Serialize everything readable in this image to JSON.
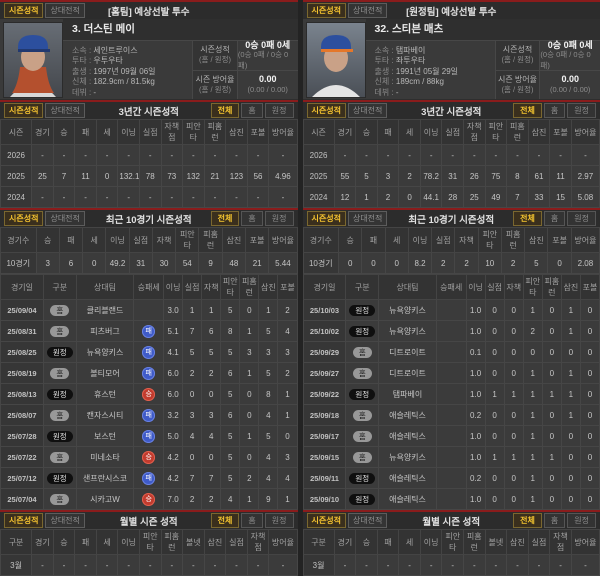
{
  "colors": {
    "accent_gold": "#f4c22f",
    "section_border_red": "#8a1c1c",
    "win_red": "#c23b2e",
    "loss_blue": "#3f5bc9",
    "home_pill_gray": "#989898",
    "away_pill_black": "#0f0f0f"
  },
  "common": {
    "tab_season": "시즌성적",
    "tab_vs": "상대전적",
    "filter_all": "전체",
    "filter_home": "홈",
    "filter_away": "원정",
    "home_away_label": "(홈 / 원정)",
    "season_stat_label": "시즌성적",
    "era_stat_label": "시즌 방어율",
    "three_year_title": "3년간 시즌성적",
    "recent10_title": "최근 10경기 시즌성적",
    "monthly_title": "월별 시즌 성적"
  },
  "left": {
    "title": "[홈팀] 예상선발 투수",
    "player": {
      "name": "3. 더스틴 메이",
      "info": [
        {
          "label": "소속",
          "value": "세인트루이스"
        },
        {
          "label": "투타",
          "value": "우투우타"
        },
        {
          "label": "출생",
          "value": "1997년 09월 06일"
        },
        {
          "label": "신체",
          "value": "182.9cm / 81.5kg"
        },
        {
          "label": "데뷔",
          "value": "-"
        }
      ],
      "season_value": "0승 0패 0세",
      "season_sub": "(0승 0패 / 0승 0패)",
      "era_value": "0.00",
      "era_sub": "(0.00 / 0.00)"
    },
    "three_year": {
      "headers": [
        "시즌",
        "경기",
        "승",
        "패",
        "세",
        "이닝",
        "실점",
        "자책점",
        "피안타",
        "피홈런",
        "삼진",
        "포볼",
        "방어율"
      ],
      "rows": [
        [
          "2026",
          "-",
          "-",
          "-",
          "-",
          "-",
          "-",
          "-",
          "-",
          "-",
          "-",
          "-",
          "-"
        ],
        [
          "2025",
          "25",
          "7",
          "11",
          "0",
          "132.1",
          "78",
          "73",
          "132",
          "21",
          "123",
          "56",
          "4.96"
        ],
        [
          "2024",
          "-",
          "-",
          "-",
          "-",
          "-",
          "-",
          "-",
          "-",
          "-",
          "-",
          "-",
          "-"
        ]
      ]
    },
    "recent10": {
      "headers": [
        "경기수",
        "승",
        "패",
        "세",
        "이닝",
        "실점",
        "자책",
        "피안타",
        "피홈런",
        "삼진",
        "포볼",
        "방어율"
      ],
      "rows": [
        [
          "10경기",
          "3",
          "6",
          "0",
          "49.2",
          "31",
          "30",
          "54",
          "9",
          "48",
          "21",
          "5.44"
        ]
      ]
    },
    "gamelog": {
      "headers": [
        "경기일",
        "구분",
        "상대팀",
        "승패세",
        "이닝",
        "실점",
        "자책",
        "피안타",
        "피홈런",
        "삼진",
        "포볼"
      ],
      "types": {
        "1": "badge",
        "3": "result"
      },
      "rows": [
        [
          "25/09/04",
          "홈",
          "클리블랜드",
          "",
          "3.0",
          "1",
          "1",
          "5",
          "0",
          "1",
          "2"
        ],
        [
          "25/08/31",
          "홈",
          "피츠버그",
          "패",
          "5.1",
          "7",
          "6",
          "8",
          "1",
          "5",
          "4"
        ],
        [
          "25/08/25",
          "원정",
          "뉴욕양키스",
          "패",
          "4.1",
          "5",
          "5",
          "5",
          "3",
          "3",
          "3"
        ],
        [
          "25/08/19",
          "홈",
          "볼티모어",
          "패",
          "6.0",
          "2",
          "2",
          "6",
          "1",
          "5",
          "2"
        ],
        [
          "25/08/13",
          "원정",
          "휴스턴",
          "승",
          "6.0",
          "0",
          "0",
          "5",
          "0",
          "8",
          "1"
        ],
        [
          "25/08/07",
          "홈",
          "캔자스시티",
          "패",
          "3.2",
          "3",
          "3",
          "6",
          "0",
          "4",
          "1"
        ],
        [
          "25/07/28",
          "원정",
          "보스턴",
          "패",
          "5.0",
          "4",
          "4",
          "5",
          "1",
          "5",
          "0"
        ],
        [
          "25/07/22",
          "홈",
          "미네소타",
          "승",
          "4.2",
          "0",
          "0",
          "5",
          "0",
          "4",
          "3"
        ],
        [
          "25/07/12",
          "원정",
          "샌프란시스코",
          "패",
          "4.2",
          "7",
          "7",
          "5",
          "2",
          "4",
          "4"
        ],
        [
          "25/07/04",
          "홈",
          "시카고W",
          "승",
          "7.0",
          "2",
          "2",
          "4",
          "1",
          "9",
          "1"
        ]
      ]
    },
    "monthly": {
      "headers": [
        "구분",
        "경기",
        "승",
        "패",
        "세",
        "이닝",
        "피안타",
        "피홈런",
        "볼넷",
        "삼진",
        "실점",
        "자책점",
        "방어율"
      ],
      "rows": [
        [
          "3월",
          "-",
          "-",
          "-",
          "-",
          "-",
          "-",
          "-",
          "-",
          "-",
          "-",
          "-",
          "-"
        ]
      ]
    }
  },
  "right": {
    "title": "[원정팀] 예상선발 투수",
    "player": {
      "name": "32. 스티븐 매츠",
      "info": [
        {
          "label": "소속",
          "value": "탬파베이"
        },
        {
          "label": "투타",
          "value": "좌투우타"
        },
        {
          "label": "출생",
          "value": "1991년 05월 29일"
        },
        {
          "label": "신체",
          "value": "189cm / 88kg"
        },
        {
          "label": "데뷔",
          "value": "-"
        }
      ],
      "season_value": "0승 0패 0세",
      "season_sub": "(0승 0패 / 0승 0패)",
      "era_value": "0.00",
      "era_sub": "(0.00 / 0.00)"
    },
    "three_year": {
      "headers": [
        "시즌",
        "경기",
        "승",
        "패",
        "세",
        "이닝",
        "실점",
        "자책점",
        "피안타",
        "피홈런",
        "삼진",
        "포볼",
        "방어율"
      ],
      "rows": [
        [
          "2026",
          "-",
          "-",
          "-",
          "-",
          "-",
          "-",
          "-",
          "-",
          "-",
          "-",
          "-",
          "-"
        ],
        [
          "2025",
          "55",
          "5",
          "3",
          "2",
          "78.2",
          "31",
          "26",
          "75",
          "8",
          "61",
          "11",
          "2.97"
        ],
        [
          "2024",
          "12",
          "1",
          "2",
          "0",
          "44.1",
          "28",
          "25",
          "49",
          "7",
          "33",
          "15",
          "5.08"
        ]
      ]
    },
    "recent10": {
      "headers": [
        "경기수",
        "승",
        "패",
        "세",
        "이닝",
        "실점",
        "자책",
        "피안타",
        "피홈런",
        "삼진",
        "포볼",
        "방어율"
      ],
      "rows": [
        [
          "10경기",
          "0",
          "0",
          "0",
          "8.2",
          "2",
          "2",
          "10",
          "2",
          "5",
          "0",
          "2.08"
        ]
      ]
    },
    "gamelog": {
      "headers": [
        "경기일",
        "구분",
        "상대팀",
        "승패세",
        "이닝",
        "실점",
        "자책",
        "피안타",
        "피홈런",
        "삼진",
        "포볼"
      ],
      "types": {
        "1": "badge",
        "3": "result"
      },
      "rows": [
        [
          "25/10/03",
          "원정",
          "뉴욕양키스",
          "",
          "1.0",
          "0",
          "0",
          "1",
          "0",
          "1",
          "0"
        ],
        [
          "25/10/02",
          "원정",
          "뉴욕양키스",
          "",
          "1.0",
          "0",
          "0",
          "2",
          "0",
          "1",
          "0"
        ],
        [
          "25/09/29",
          "홈",
          "디트로이트",
          "",
          "0.1",
          "0",
          "0",
          "0",
          "0",
          "0",
          "0"
        ],
        [
          "25/09/27",
          "홈",
          "디트로이트",
          "",
          "1.0",
          "0",
          "0",
          "1",
          "0",
          "1",
          "0"
        ],
        [
          "25/09/22",
          "원정",
          "탬파베이",
          "",
          "1.0",
          "1",
          "1",
          "1",
          "1",
          "1",
          "0"
        ],
        [
          "25/09/18",
          "홈",
          "애슬레틱스",
          "",
          "0.2",
          "0",
          "0",
          "1",
          "0",
          "1",
          "0"
        ],
        [
          "25/09/17",
          "홈",
          "애슬레틱스",
          "",
          "1.0",
          "0",
          "0",
          "1",
          "0",
          "0",
          "0"
        ],
        [
          "25/09/15",
          "홈",
          "뉴욕양키스",
          "",
          "1.0",
          "1",
          "1",
          "1",
          "1",
          "0",
          "0"
        ],
        [
          "25/09/11",
          "원정",
          "애슬레틱스",
          "",
          "0.2",
          "0",
          "0",
          "1",
          "0",
          "0",
          "0"
        ],
        [
          "25/09/10",
          "원정",
          "애슬레틱스",
          "",
          "1.0",
          "0",
          "0",
          "1",
          "0",
          "0",
          "0"
        ]
      ]
    },
    "monthly": {
      "headers": [
        "구분",
        "경기",
        "승",
        "패",
        "세",
        "이닝",
        "피안타",
        "피홈런",
        "볼넷",
        "삼진",
        "실점",
        "자책점",
        "방어율"
      ],
      "rows": [
        [
          "3월",
          "-",
          "-",
          "-",
          "-",
          "-",
          "-",
          "-",
          "-",
          "-",
          "-",
          "-",
          "-"
        ]
      ]
    }
  }
}
